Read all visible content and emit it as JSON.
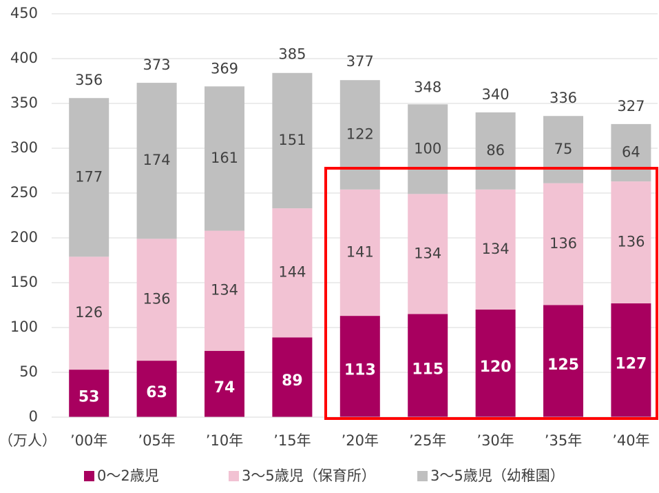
{
  "chart_data": {
    "type": "stacked_bar",
    "categories": [
      "’00年",
      "’05年",
      "’10年",
      "’15年",
      "’20年",
      "’25年",
      "’30年",
      "’35年",
      "’40年"
    ],
    "series": [
      {
        "name": "0～2歳児",
        "color": "#a8005f",
        "values": [
          53,
          63,
          74,
          89,
          113,
          115,
          120,
          125,
          127
        ]
      },
      {
        "name": "3～5歳児（保育所）",
        "color": "#f2c2d3",
        "values": [
          126,
          136,
          134,
          144,
          141,
          134,
          134,
          136,
          136
        ]
      },
      {
        "name": "3～5歳児（幼稚園）",
        "color": "#bfbfbf",
        "values": [
          177,
          174,
          161,
          151,
          122,
          100,
          86,
          75,
          64
        ]
      }
    ],
    "totals": [
      356,
      373,
      369,
      385,
      377,
      348,
      340,
      336,
      327
    ],
    "unit_label": "（万人）",
    "ylim": [
      0,
      450
    ],
    "yticks": [
      0,
      50,
      100,
      150,
      200,
      250,
      300,
      350,
      400,
      450
    ],
    "grid": true
  }
}
